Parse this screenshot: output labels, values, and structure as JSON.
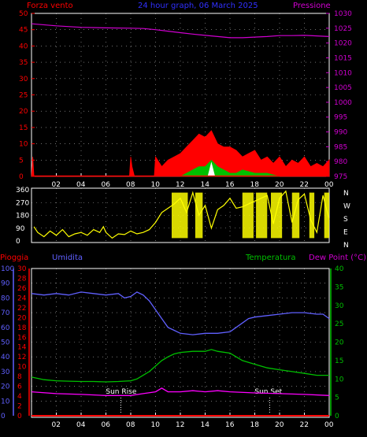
{
  "header": {
    "title": "24 hour graph, 06 March 2025",
    "left_label": "Forza vento",
    "right_label": "Pressione"
  },
  "colors": {
    "bg": "#000000",
    "wind": "#ff0000",
    "gust_fill": "#00c000",
    "gust_highlight": "#ffffff",
    "pressure": "#d000d0",
    "direction": "#ffff00",
    "rain": "#ff0000",
    "humidity": "#6060ff",
    "temperature": "#00c000",
    "dew_point": "#ff00ff",
    "title": "#3030ff",
    "axis_white": "#ffffff",
    "grid": "#ffffff"
  },
  "labels": {
    "time_ticks": [
      "02",
      "04",
      "06",
      "08",
      "10",
      "12",
      "14",
      "16",
      "18",
      "20",
      "22",
      "00"
    ],
    "direction_letters": [
      "N",
      "W",
      "S",
      "E",
      "N"
    ],
    "bottom_left1": "Pioggia",
    "bottom_left2": "Umidita",
    "bottom_right1": "Temperatura",
    "bottom_right2": "Dew Point (°C)",
    "sun_rise": "Sun Rise",
    "sun_set": "Sun Set"
  },
  "chart_data": [
    {
      "type": "line",
      "name": "wind-pressure-panel",
      "title": "24 hour graph, 06 March 2025",
      "x_ticks": [
        "02",
        "04",
        "06",
        "08",
        "10",
        "12",
        "14",
        "16",
        "18",
        "20",
        "22",
        "00"
      ],
      "y_left": {
        "label": "Forza vento",
        "range": [
          0,
          50
        ],
        "ticks": [
          0,
          5,
          10,
          15,
          20,
          25,
          30,
          35,
          40,
          45,
          50
        ]
      },
      "y_right": {
        "label": "Pressione",
        "range": [
          975,
          1030
        ],
        "ticks": [
          975,
          980,
          985,
          990,
          995,
          1000,
          1005,
          1010,
          1015,
          1020,
          1025,
          1030
        ]
      },
      "series": [
        {
          "name": "Pressione",
          "axis": "right",
          "x": [
            0,
            2,
            4,
            6,
            8,
            9,
            10,
            11,
            12,
            13,
            14,
            15,
            16,
            17,
            18,
            19,
            20,
            21,
            22,
            23,
            24
          ],
          "y": [
            1026.5,
            1025.8,
            1025.3,
            1025.1,
            1025.0,
            1024.9,
            1024.5,
            1024.0,
            1023.5,
            1023.0,
            1022.6,
            1022.2,
            1021.8,
            1021.8,
            1022.0,
            1022.2,
            1022.5,
            1022.5,
            1022.6,
            1022.4,
            1022.2
          ]
        },
        {
          "name": "Forza vento",
          "axis": "left",
          "x": [
            0,
            0.1,
            0.2,
            1,
            6,
            7.9,
            8,
            8.1,
            8.3,
            9.9,
            10,
            10.5,
            11,
            11.5,
            12,
            12.5,
            13,
            13.5,
            14,
            14.5,
            15,
            15.5,
            16,
            16.5,
            17,
            17.5,
            18,
            18.5,
            19,
            19.5,
            20,
            20.5,
            21,
            21.5,
            22,
            22.5,
            23,
            23.5,
            24
          ],
          "y": [
            0,
            6,
            0,
            0,
            0,
            0,
            6,
            3,
            0,
            0,
            6,
            3,
            5,
            6,
            7,
            9,
            11,
            13,
            12,
            14,
            10,
            9,
            9,
            8,
            6,
            7,
            8,
            5,
            6,
            4,
            6,
            3,
            5,
            4,
            6,
            3,
            4,
            3,
            5
          ]
        },
        {
          "name": "gust",
          "x": [
            12,
            12.5,
            13,
            13.5,
            14,
            14.5,
            15,
            15.5,
            16,
            16.5,
            17,
            18,
            19,
            20
          ],
          "y": [
            0,
            1,
            2,
            3,
            3,
            5,
            3,
            2,
            1,
            1,
            2,
            1,
            1,
            0
          ]
        }
      ]
    },
    {
      "type": "scatter",
      "name": "wind-direction-panel",
      "x_ticks": [
        "02",
        "04",
        "06",
        "08",
        "10",
        "12",
        "14",
        "16",
        "18",
        "20",
        "22",
        "00"
      ],
      "y_range": [
        0,
        360
      ],
      "y_ticks": [
        0,
        90,
        180,
        270,
        360
      ],
      "direction_letters": [
        "N",
        "W",
        "S",
        "E",
        "N"
      ],
      "series": [
        {
          "name": "direction",
          "x": [
            0.2,
            0.5,
            1,
            1.5,
            2,
            2.5,
            3,
            3.5,
            4,
            4.5,
            5,
            5.5,
            5.8,
            6,
            6.5,
            7,
            7.5,
            8,
            8.5,
            9,
            9.5,
            10,
            10.5,
            11,
            11.5,
            12,
            12.5,
            13,
            13.5,
            14,
            14.5,
            15,
            15.5,
            16,
            16.5,
            17,
            17.5,
            18,
            18.5,
            19,
            19.5,
            20,
            20.5,
            21,
            21.5,
            22,
            22.5,
            23,
            23.5,
            24
          ],
          "y": [
            100,
            60,
            30,
            70,
            40,
            80,
            30,
            50,
            60,
            40,
            80,
            60,
            100,
            60,
            20,
            50,
            45,
            70,
            50,
            60,
            80,
            130,
            200,
            230,
            260,
            300,
            200,
            340,
            180,
            250,
            90,
            220,
            250,
            300,
            230,
            240,
            260,
            280,
            300,
            320,
            120,
            300,
            350,
            130,
            290,
            330,
            150,
            60,
            320,
            150
          ]
        }
      ]
    },
    {
      "type": "line",
      "name": "temp-humidity-panel",
      "x_ticks": [
        "02",
        "04",
        "06",
        "08",
        "10",
        "12",
        "14",
        "16",
        "18",
        "20",
        "22",
        "00"
      ],
      "y_left_outer": {
        "label": "Umidita",
        "range": [
          0,
          100
        ],
        "ticks": [
          0,
          10,
          20,
          30,
          40,
          50,
          60,
          70,
          80,
          90,
          100
        ]
      },
      "y_left_inner": {
        "label": "Pioggia",
        "range": [
          0,
          30
        ],
        "ticks": [
          0,
          2,
          4,
          6,
          8,
          10,
          12,
          14,
          16,
          18,
          20,
          22,
          24,
          26,
          28,
          30
        ]
      },
      "y_right": {
        "label": "Temperatura / Dew Point (°C)",
        "range": [
          0,
          40
        ],
        "ticks": [
          0,
          5,
          10,
          15,
          20,
          25,
          30,
          35,
          40
        ]
      },
      "series": [
        {
          "name": "Umidita",
          "axis": "left_outer",
          "x": [
            0,
            1,
            2,
            3,
            4,
            5,
            6,
            7,
            7.5,
            8,
            8.5,
            9,
            9.5,
            10,
            10.5,
            11,
            11.5,
            12,
            13,
            14,
            15,
            16,
            16.5,
            17,
            17.5,
            18,
            19,
            20,
            21,
            22,
            23,
            23.5,
            24
          ],
          "y": [
            83,
            82,
            83,
            82,
            84,
            83,
            82,
            83,
            80,
            81,
            84,
            82,
            78,
            72,
            66,
            60,
            58,
            56,
            55,
            56,
            56,
            57,
            60,
            63,
            66,
            67,
            68,
            69,
            70,
            70,
            69,
            69,
            66
          ]
        },
        {
          "name": "Temperatura",
          "axis": "right",
          "x": [
            0,
            1,
            2,
            3,
            4,
            5,
            6,
            7,
            8,
            8.5,
            9,
            9.5,
            10,
            10.5,
            11,
            11.5,
            12,
            13,
            14,
            14.5,
            15,
            16,
            16.5,
            17,
            18,
            19,
            20,
            21,
            22,
            23,
            24
          ],
          "y": [
            10.5,
            9.8,
            9.5,
            9.4,
            9.3,
            9.3,
            9.2,
            9.3,
            9.5,
            10,
            11,
            12,
            13.5,
            15,
            16,
            16.8,
            17.2,
            17.5,
            17.5,
            18,
            17.5,
            17,
            16,
            15,
            14,
            13,
            12.5,
            12,
            11.5,
            11,
            11
          ]
        },
        {
          "name": "Dew Point",
          "axis": "right",
          "x": [
            0,
            2,
            4,
            6,
            8,
            9,
            10,
            10.5,
            11,
            12,
            13,
            14,
            15,
            16,
            18,
            20,
            22,
            24
          ],
          "y": [
            6.5,
            6,
            5.8,
            5.5,
            5.5,
            6,
            6.5,
            7.5,
            6.5,
            6.5,
            6.8,
            6.5,
            6.8,
            6.5,
            6.2,
            6,
            5.8,
            5.5
          ]
        },
        {
          "name": "Pioggia",
          "axis": "left_inner",
          "x": [
            0,
            24
          ],
          "y": [
            0,
            0
          ]
        }
      ],
      "annotations": [
        {
          "label": "Sun Rise",
          "x": 7.2
        },
        {
          "label": "Sun Set",
          "x": 19.2
        }
      ]
    }
  ]
}
